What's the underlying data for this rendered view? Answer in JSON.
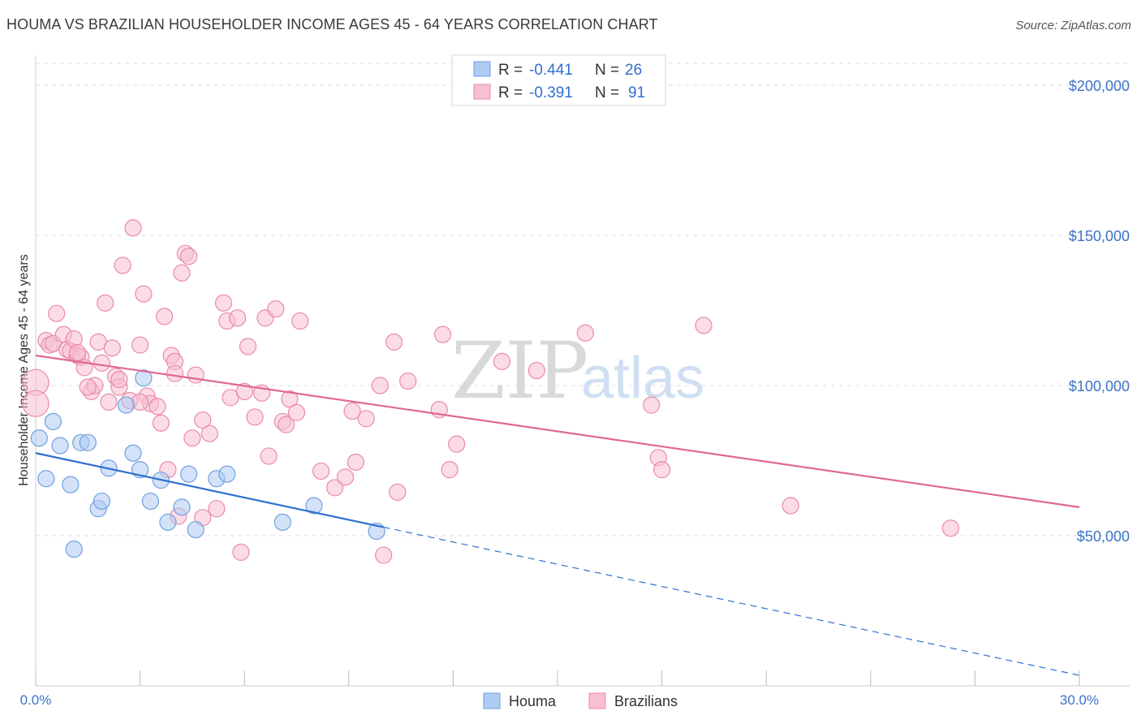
{
  "header": {
    "title": "HOUMA VS BRAZILIAN HOUSEHOLDER INCOME AGES 45 - 64 YEARS CORRELATION CHART",
    "source": "Source: ZipAtlas.com"
  },
  "watermark": {
    "zip": "ZIP",
    "atlas": "atlas"
  },
  "colors": {
    "houma_fill": "#aecbf2",
    "houma_stroke": "#6f9fe0",
    "houma_line": "#2f6fd0",
    "braz_fill": "#f7bfd0",
    "braz_stroke": "#e98aa8",
    "braz_line": "#e0688f",
    "grid": "#dddddd",
    "axis_text": "#3a73c8"
  },
  "legend": {
    "rows": [
      {
        "r_label": "R =",
        "r_value": "-0.441",
        "n_label": "N =",
        "n_value": "26"
      },
      {
        "r_label": "R =",
        "r_value": "-0.391",
        "n_label": "N =",
        "n_value": "91"
      }
    ]
  },
  "bottom_legend": {
    "houma": "Houma",
    "brazilians": "Brazilians"
  },
  "chart_data": {
    "type": "scatter",
    "title": "HOUMA VS BRAZILIAN HOUSEHOLDER INCOME AGES 45 - 64 YEARS CORRELATION CHART",
    "xlabel": "",
    "ylabel": "Householder Income Ages 45 - 64 years",
    "xlim": [
      0,
      30
    ],
    "ylim": [
      0,
      210000
    ],
    "x_tick_labels": [
      "0.0%",
      "30.0%"
    ],
    "y_ticks": [
      {
        "value": 200000,
        "label": "$200,000"
      },
      {
        "value": 150000,
        "label": "$150,000"
      },
      {
        "value": 100000,
        "label": "$100,000"
      },
      {
        "value": 50000,
        "label": "$50,000"
      }
    ],
    "series": [
      {
        "name": "Houma",
        "r": -0.441,
        "n": 26,
        "trend": {
          "x0": 0,
          "y0": 77500,
          "x1": 30,
          "y1": 3500,
          "solid_until_x": 10.0
        },
        "points": [
          [
            0.1,
            82500
          ],
          [
            0.3,
            69000
          ],
          [
            0.5,
            88000
          ],
          [
            0.7,
            80000
          ],
          [
            1.0,
            67000
          ],
          [
            1.1,
            45500
          ],
          [
            1.3,
            81000
          ],
          [
            1.5,
            81000
          ],
          [
            1.8,
            59000
          ],
          [
            1.9,
            61500
          ],
          [
            2.1,
            72500
          ],
          [
            2.6,
            93500
          ],
          [
            2.8,
            77500
          ],
          [
            3.0,
            72000
          ],
          [
            3.1,
            102500
          ],
          [
            3.3,
            61500
          ],
          [
            3.6,
            68500
          ],
          [
            3.8,
            54500
          ],
          [
            4.2,
            59500
          ],
          [
            4.4,
            70500
          ],
          [
            4.6,
            52000
          ],
          [
            5.2,
            69000
          ],
          [
            5.5,
            70500
          ],
          [
            7.1,
            54500
          ],
          [
            8.0,
            60000
          ],
          [
            9.8,
            51500
          ]
        ]
      },
      {
        "name": "Brazilians",
        "r": -0.391,
        "n": 91,
        "trend": {
          "x0": 0,
          "y0": 110000,
          "x1": 30,
          "y1": 59500
        },
        "points": [
          [
            0.0,
            101000
          ],
          [
            0.0,
            94000
          ],
          [
            0.3,
            115000
          ],
          [
            0.4,
            113500
          ],
          [
            0.5,
            114000
          ],
          [
            0.6,
            124000
          ],
          [
            0.8,
            117000
          ],
          [
            0.9,
            112000
          ],
          [
            1.0,
            111500
          ],
          [
            1.1,
            115500
          ],
          [
            1.2,
            110000
          ],
          [
            1.3,
            109500
          ],
          [
            1.4,
            106000
          ],
          [
            1.6,
            98000
          ],
          [
            1.7,
            100000
          ],
          [
            1.8,
            114500
          ],
          [
            1.9,
            107500
          ],
          [
            2.0,
            127500
          ],
          [
            2.1,
            94500
          ],
          [
            2.2,
            112500
          ],
          [
            2.3,
            103000
          ],
          [
            2.4,
            99500
          ],
          [
            2.5,
            140000
          ],
          [
            2.7,
            95000
          ],
          [
            2.8,
            152500
          ],
          [
            3.0,
            113500
          ],
          [
            3.1,
            130500
          ],
          [
            3.2,
            96500
          ],
          [
            3.3,
            94000
          ],
          [
            3.5,
            93000
          ],
          [
            3.6,
            87500
          ],
          [
            3.7,
            123000
          ],
          [
            3.8,
            72000
          ],
          [
            3.9,
            110000
          ],
          [
            4.0,
            108000
          ],
          [
            4.0,
            104000
          ],
          [
            4.2,
            137500
          ],
          [
            4.3,
            144000
          ],
          [
            4.4,
            143000
          ],
          [
            4.5,
            82500
          ],
          [
            4.6,
            103500
          ],
          [
            4.8,
            88500
          ],
          [
            5.0,
            84000
          ],
          [
            5.2,
            59000
          ],
          [
            5.4,
            127500
          ],
          [
            5.5,
            121500
          ],
          [
            5.6,
            96000
          ],
          [
            5.8,
            122500
          ],
          [
            5.9,
            44500
          ],
          [
            6.1,
            113000
          ],
          [
            6.3,
            89500
          ],
          [
            6.5,
            97500
          ],
          [
            6.6,
            122500
          ],
          [
            6.7,
            76500
          ],
          [
            6.9,
            125500
          ],
          [
            7.1,
            88000
          ],
          [
            7.2,
            87000
          ],
          [
            7.3,
            95500
          ],
          [
            7.5,
            91000
          ],
          [
            7.6,
            121500
          ],
          [
            8.2,
            71500
          ],
          [
            8.6,
            66000
          ],
          [
            8.9,
            69500
          ],
          [
            9.1,
            91500
          ],
          [
            9.2,
            74500
          ],
          [
            9.5,
            89000
          ],
          [
            9.9,
            100000
          ],
          [
            10.0,
            43500
          ],
          [
            10.3,
            114500
          ],
          [
            10.4,
            64500
          ],
          [
            10.7,
            101500
          ],
          [
            11.6,
            92000
          ],
          [
            11.7,
            117000
          ],
          [
            11.9,
            72000
          ],
          [
            12.1,
            80500
          ],
          [
            13.4,
            108000
          ],
          [
            14.4,
            105000
          ],
          [
            15.8,
            117500
          ],
          [
            17.7,
            93500
          ],
          [
            17.9,
            76000
          ],
          [
            18.0,
            72000
          ],
          [
            19.2,
            120000
          ],
          [
            21.7,
            60000
          ],
          [
            26.3,
            52500
          ],
          [
            4.1,
            56500
          ],
          [
            4.8,
            56000
          ],
          [
            1.5,
            99500
          ],
          [
            3.0,
            94500
          ],
          [
            2.4,
            102000
          ],
          [
            6.0,
            98000
          ],
          [
            1.2,
            111000
          ]
        ]
      }
    ]
  }
}
